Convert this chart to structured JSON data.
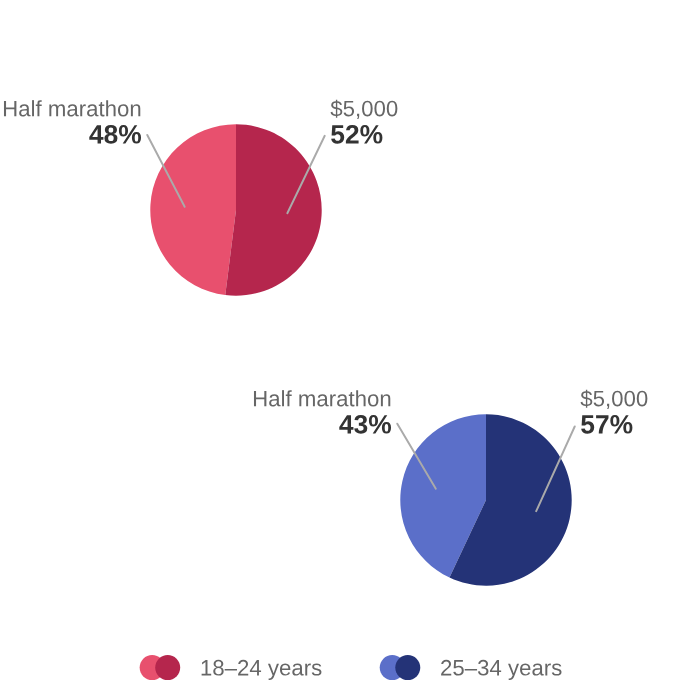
{
  "chart_data": [
    {
      "type": "pie",
      "categories": [
        "Half marathon",
        "$5,000"
      ],
      "legend": "bottom",
      "series": [
        {
          "name": "18–24 years",
          "values": [
            48,
            52
          ],
          "colors": [
            "#e8506e",
            "#b5264d"
          ],
          "value_labels": [
            "48%",
            "52%"
          ]
        }
      ]
    },
    {
      "type": "pie",
      "categories": [
        "Half marathon",
        "$5,000"
      ],
      "legend": "bottom",
      "series": [
        {
          "name": "25–34 years",
          "values": [
            43,
            57
          ],
          "colors": [
            "#5b6fc9",
            "#243377"
          ],
          "value_labels": [
            "43%",
            "57%"
          ]
        }
      ]
    }
  ]
}
